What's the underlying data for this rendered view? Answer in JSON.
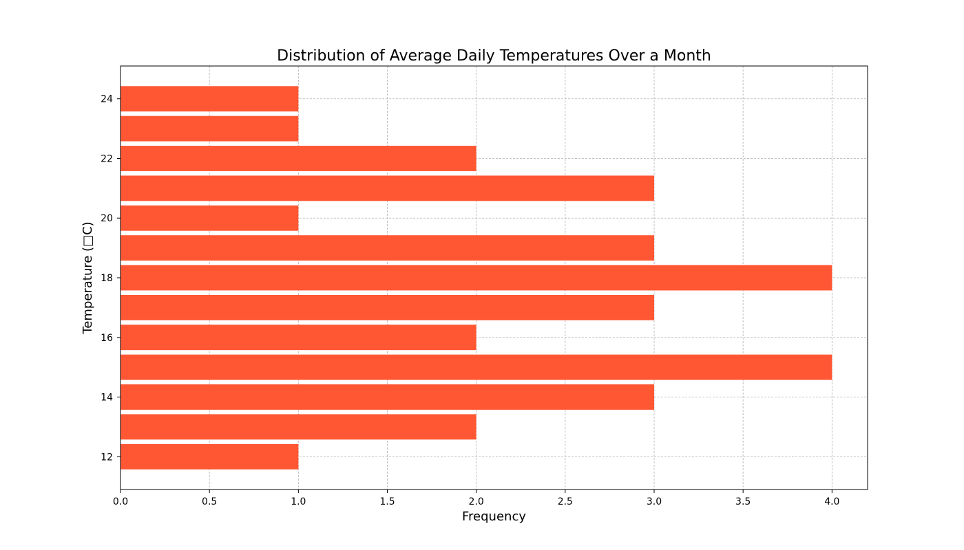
{
  "chart_data": {
    "type": "bar",
    "orientation": "horizontal",
    "title": "Distribution of Average Daily Temperatures Over a Month",
    "xlabel": "Frequency",
    "ylabel": "Temperature (□C)",
    "y": [
      12,
      13,
      14,
      15,
      16,
      17,
      18,
      19,
      20,
      21,
      22,
      23,
      24
    ],
    "values": [
      1,
      2,
      3,
      4,
      2,
      3,
      4,
      3,
      1,
      3,
      2,
      1,
      1
    ],
    "xlim": [
      0,
      4.2
    ],
    "ylim": [
      10.9,
      25.1
    ],
    "x_ticks": [
      "0.0",
      "0.5",
      "1.0",
      "1.5",
      "2.0",
      "2.5",
      "3.0",
      "3.5",
      "4.0"
    ],
    "y_ticks": [
      "12",
      "14",
      "16",
      "18",
      "20",
      "22",
      "24"
    ],
    "grid": true,
    "bar_color": "#ff5733"
  }
}
